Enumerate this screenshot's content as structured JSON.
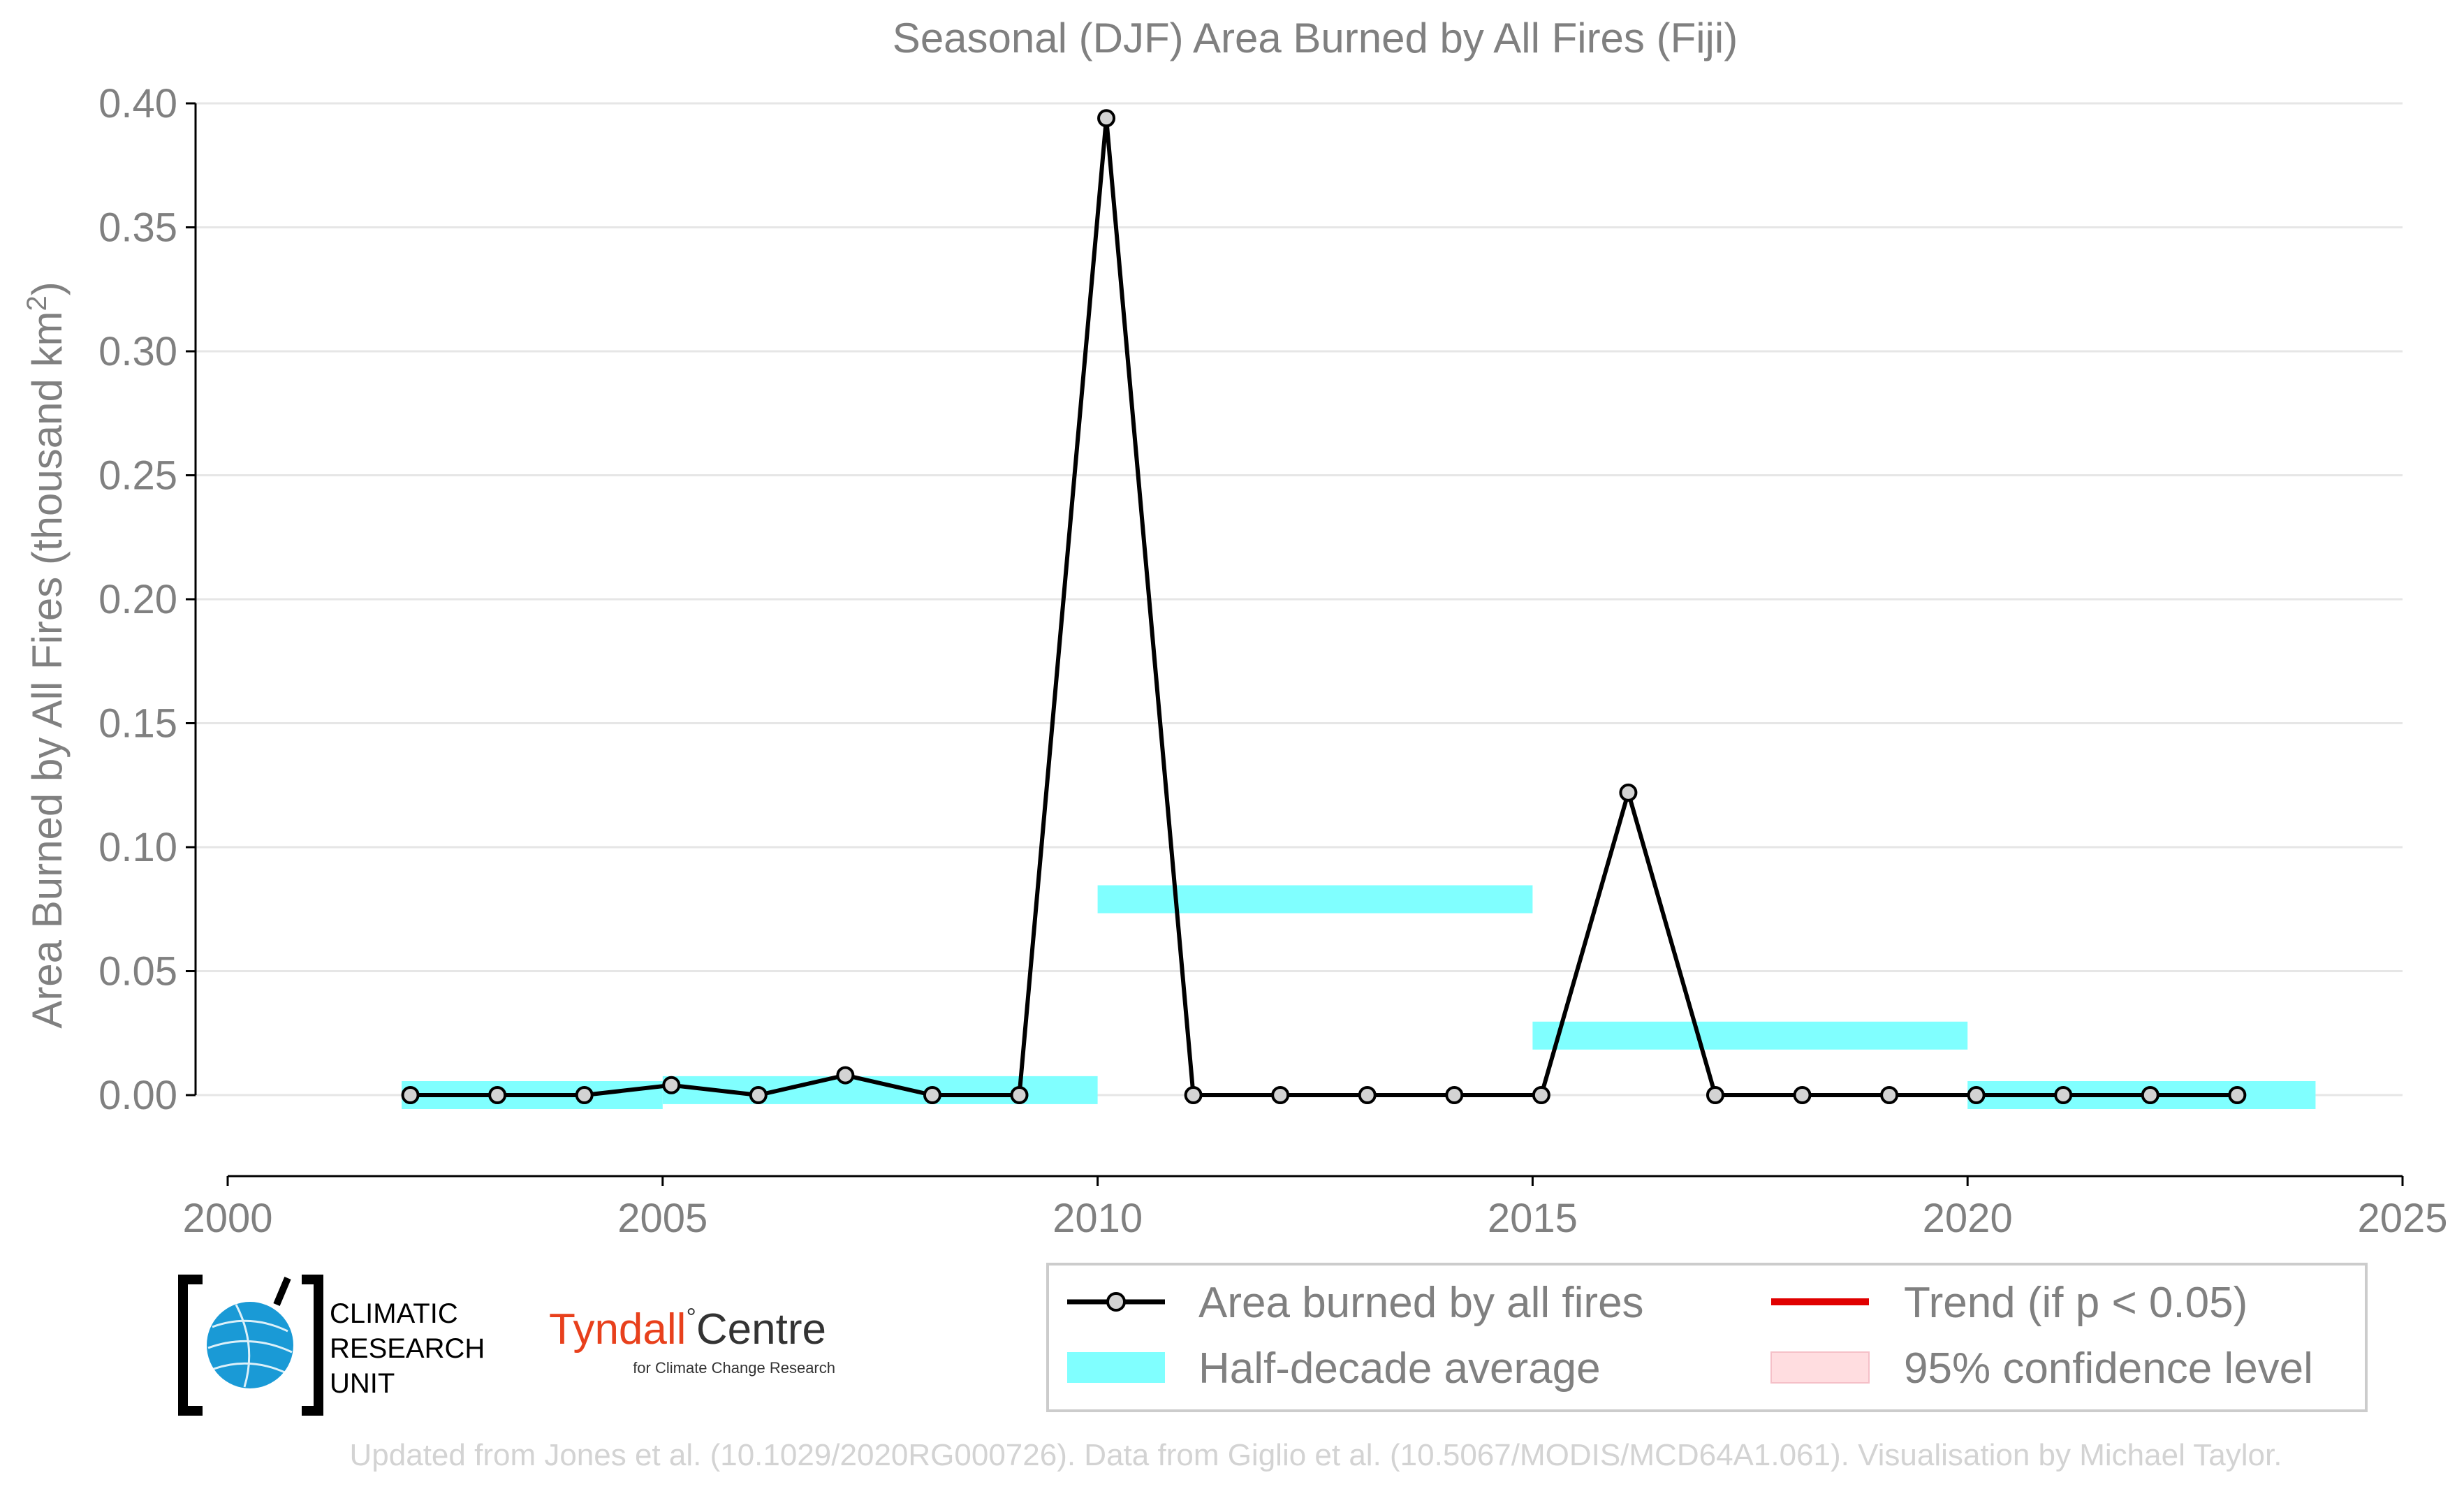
{
  "chart_data": {
    "type": "line",
    "title": "Seasonal (DJF) Area Burned by All Fires (Fiji)",
    "ylabel_main": "Area Burned by All Fires (thousand km",
    "ylabel_sup": "2",
    "ylabel_close": ")",
    "xlabel": "",
    "xlim": [
      2000,
      2025
    ],
    "ylim": [
      -0.032,
      0.405
    ],
    "x_ticks": [
      2000,
      2005,
      2010,
      2015,
      2020,
      2025
    ],
    "y_ticks": [
      0.0,
      0.05,
      0.1,
      0.15,
      0.2,
      0.25,
      0.3,
      0.35,
      0.4
    ],
    "y_tick_labels": [
      "0.00",
      "0.05",
      "0.10",
      "0.15",
      "0.20",
      "0.25",
      "0.30",
      "0.35",
      "0.40"
    ],
    "grid": "horizontal",
    "series": [
      {
        "name": "Area burned by all fires",
        "x": [
          2002,
          2003,
          2004,
          2005,
          2006,
          2007,
          2008,
          2009,
          2010,
          2011,
          2012,
          2013,
          2014,
          2015,
          2016,
          2017,
          2018,
          2019,
          2020,
          2021,
          2022,
          2023
        ],
        "values": [
          0.0,
          0.0,
          0.0,
          0.004,
          0.0,
          0.008,
          0.0,
          0.0,
          0.394,
          0.0,
          0.0,
          0.0,
          0.0,
          0.0,
          0.122,
          0.0,
          0.0,
          0.0,
          0.0,
          0.0,
          0.0,
          0.0
        ]
      }
    ],
    "half_decade_average": [
      {
        "x_start": 2002,
        "x_end": 2005,
        "value": 0.0
      },
      {
        "x_start": 2005,
        "x_end": 2010,
        "value": 0.002
      },
      {
        "x_start": 2010,
        "x_end": 2015,
        "value": 0.079
      },
      {
        "x_start": 2015,
        "x_end": 2020,
        "value": 0.024
      },
      {
        "x_start": 2020,
        "x_end": 2024,
        "value": 0.0
      }
    ],
    "legend": {
      "placement": "bottom-right",
      "items": [
        {
          "label": "Area burned by all fires",
          "kind": "line-marker"
        },
        {
          "label": "Trend (if p < 0.05)",
          "kind": "red-line"
        },
        {
          "label": "Half-decade average",
          "kind": "cyan-band"
        },
        {
          "label": "95% confidence level",
          "kind": "pink-band"
        }
      ]
    },
    "colors": {
      "line": "#000000",
      "marker_fill": "#d3d3d3",
      "band": "#80ffff",
      "trend": "#e00000",
      "confidence": "#ffdde0",
      "grid": "#e6e6e6",
      "text": "#808080",
      "credit": "#d3d3d3",
      "tyndall": "#e8401c"
    }
  },
  "logos": {
    "cru": [
      "CLIMATIC",
      "RESEARCH",
      "UNIT"
    ],
    "tyndall_name": "Tyndall",
    "tyndall_degree": "°",
    "tyndall_centre": "Centre",
    "tyndall_sub": "for Climate Change Research"
  },
  "credit": "Updated from Jones et al. (10.1029/2020RG000726). Data from Giglio et al. (10.5067/MODIS/MCD64A1.061). Visualisation by Michael Taylor."
}
